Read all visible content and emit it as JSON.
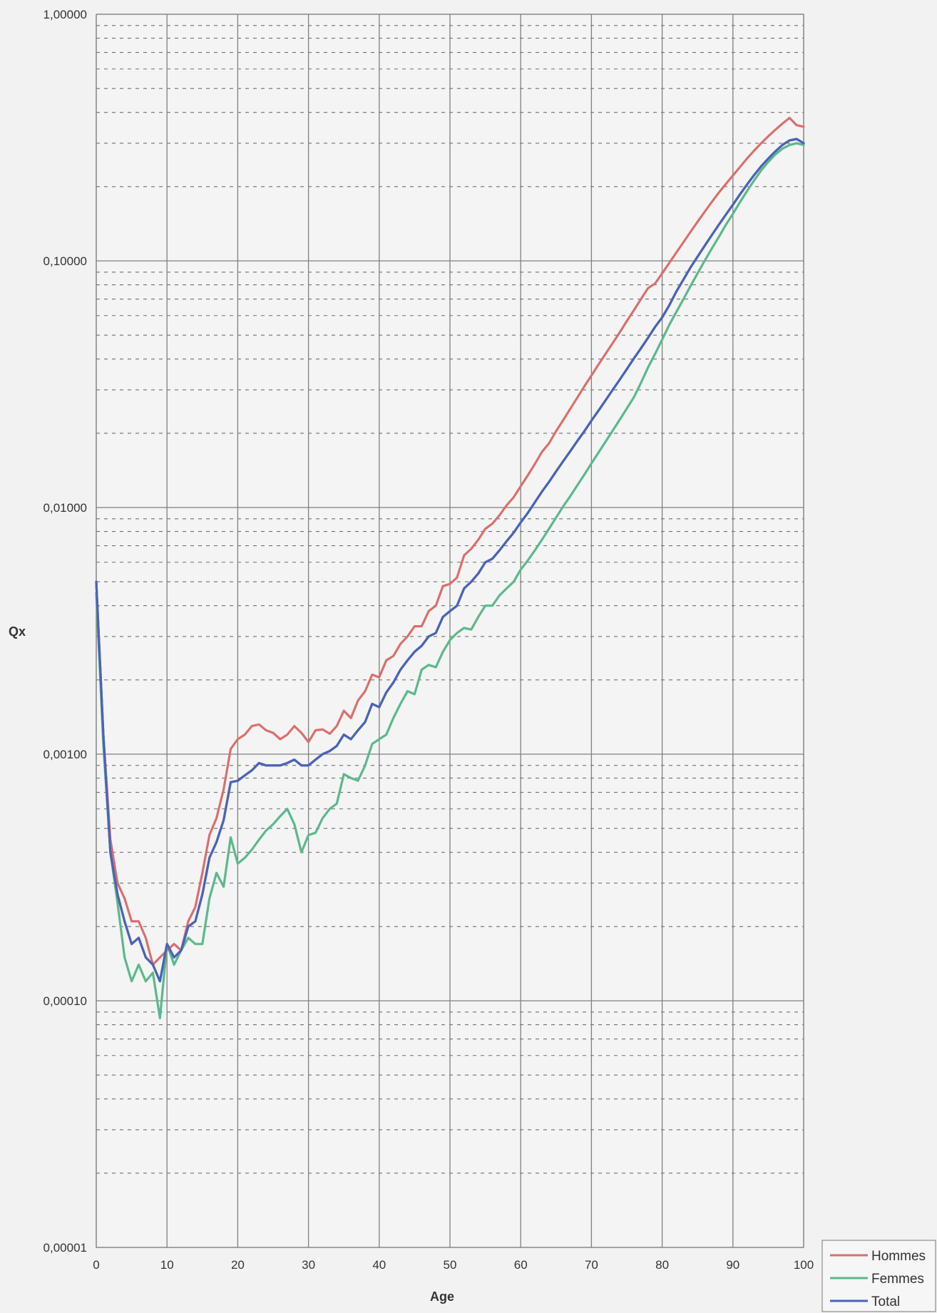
{
  "chart_data": {
    "type": "line",
    "xlabel": "Age",
    "ylabel": "Qx",
    "xlim": [
      0,
      100
    ],
    "ylim": [
      1e-05,
      1
    ],
    "y_scale": "log",
    "grid": "major solid, minor dotted",
    "legend_position": "bottom-right",
    "x_ticks": [
      0,
      10,
      20,
      30,
      40,
      50,
      60,
      70,
      80,
      90,
      100
    ],
    "x_tick_labels": [
      "0",
      "10",
      "20",
      "30",
      "40",
      "50",
      "60",
      "70",
      "80",
      "90",
      "100"
    ],
    "y_ticks": [
      1e-05,
      0.0001,
      0.001,
      0.01,
      0.1,
      1
    ],
    "y_tick_labels": [
      "0,00001",
      "0,00010",
      "0,00100",
      "0,01000",
      "0,10000",
      "1,00000"
    ],
    "x": [
      0,
      1,
      2,
      3,
      4,
      5,
      6,
      7,
      8,
      9,
      10,
      11,
      12,
      13,
      14,
      15,
      16,
      17,
      18,
      19,
      20,
      21,
      22,
      23,
      24,
      25,
      26,
      27,
      28,
      29,
      30,
      31,
      32,
      33,
      34,
      35,
      36,
      37,
      38,
      39,
      40,
      41,
      42,
      43,
      44,
      45,
      46,
      47,
      48,
      49,
      50,
      51,
      52,
      53,
      54,
      55,
      56,
      57,
      58,
      59,
      60,
      61,
      62,
      63,
      64,
      65,
      66,
      67,
      68,
      69,
      70,
      71,
      72,
      73,
      74,
      75,
      76,
      77,
      78,
      79,
      80,
      81,
      82,
      83,
      84,
      85,
      86,
      87,
      88,
      89,
      90,
      91,
      92,
      93,
      94,
      95,
      96,
      97,
      98,
      99,
      100
    ],
    "series": [
      {
        "name": "Hommes",
        "color": "#d9706e",
        "values": [
          0.005,
          0.0012,
          0.00045,
          0.0003,
          0.00026,
          0.00021,
          0.00021,
          0.00018,
          0.00014,
          0.00015,
          0.00016,
          0.00017,
          0.00016,
          0.00021,
          0.00024,
          0.00033,
          0.00047,
          0.00055,
          0.00072,
          0.00105,
          0.00115,
          0.0012,
          0.0013,
          0.00132,
          0.00125,
          0.00122,
          0.00115,
          0.0012,
          0.0013,
          0.00122,
          0.00112,
          0.00125,
          0.00126,
          0.00121,
          0.0013,
          0.0015,
          0.0014,
          0.00165,
          0.0018,
          0.0021,
          0.00205,
          0.0024,
          0.0025,
          0.0028,
          0.003,
          0.0033,
          0.0033,
          0.0038,
          0.004,
          0.0048,
          0.0049,
          0.0052,
          0.0064,
          0.0068,
          0.0074,
          0.0082,
          0.0086,
          0.0093,
          0.0102,
          0.011,
          0.0122,
          0.0135,
          0.015,
          0.0168,
          0.0182,
          0.0204,
          0.0226,
          0.0251,
          0.0279,
          0.031,
          0.0343,
          0.038,
          0.042,
          0.0464,
          0.0513,
          0.057,
          0.063,
          0.07,
          0.0775,
          0.081,
          0.089,
          0.098,
          0.108,
          0.119,
          0.131,
          0.144,
          0.158,
          0.173,
          0.189,
          0.205,
          0.222,
          0.24,
          0.26,
          0.28,
          0.3,
          0.32,
          0.34,
          0.36,
          0.38,
          0.355,
          0.35
        ]
      },
      {
        "name": "Femmes",
        "color": "#5cb88a",
        "values": [
          0.0045,
          0.0011,
          0.0004,
          0.00025,
          0.00015,
          0.00012,
          0.00014,
          0.00012,
          0.00013,
          8.5e-05,
          0.00017,
          0.00014,
          0.00016,
          0.00018,
          0.00017,
          0.00017,
          0.00026,
          0.00033,
          0.00029,
          0.00046,
          0.00036,
          0.00038,
          0.00041,
          0.00045,
          0.00049,
          0.00052,
          0.00056,
          0.0006,
          0.00052,
          0.0004,
          0.00047,
          0.00048,
          0.00055,
          0.0006,
          0.00063,
          0.00083,
          0.0008,
          0.00078,
          0.0009,
          0.0011,
          0.00115,
          0.0012,
          0.0014,
          0.0016,
          0.0018,
          0.00175,
          0.0022,
          0.0023,
          0.00225,
          0.0026,
          0.0029,
          0.0031,
          0.00325,
          0.0032,
          0.0036,
          0.004,
          0.004,
          0.0044,
          0.0047,
          0.005,
          0.0056,
          0.0061,
          0.0067,
          0.0074,
          0.0082,
          0.0091,
          0.0101,
          0.0111,
          0.0123,
          0.0136,
          0.0151,
          0.0167,
          0.0185,
          0.0205,
          0.0227,
          0.0252,
          0.028,
          0.032,
          0.037,
          0.042,
          0.048,
          0.055,
          0.062,
          0.07,
          0.079,
          0.089,
          0.1,
          0.112,
          0.125,
          0.14,
          0.155,
          0.173,
          0.192,
          0.212,
          0.233,
          0.252,
          0.27,
          0.285,
          0.295,
          0.3,
          0.295
        ]
      },
      {
        "name": "Total",
        "color": "#4a63b8",
        "values": [
          0.005,
          0.0012,
          0.0004,
          0.00027,
          0.00021,
          0.00017,
          0.00018,
          0.00015,
          0.00014,
          0.00012,
          0.00017,
          0.00015,
          0.00016,
          0.0002,
          0.00021,
          0.00027,
          0.00038,
          0.00044,
          0.00054,
          0.00077,
          0.00078,
          0.00082,
          0.00086,
          0.00092,
          0.0009,
          0.0009,
          0.0009,
          0.00092,
          0.00095,
          0.0009,
          0.0009,
          0.00095,
          0.001,
          0.00103,
          0.00108,
          0.0012,
          0.00115,
          0.00125,
          0.00135,
          0.0016,
          0.00155,
          0.00178,
          0.00195,
          0.0022,
          0.0024,
          0.0026,
          0.00275,
          0.003,
          0.0031,
          0.0036,
          0.0038,
          0.004,
          0.0047,
          0.005,
          0.0054,
          0.006,
          0.0062,
          0.0067,
          0.0073,
          0.0079,
          0.0087,
          0.0095,
          0.0105,
          0.0116,
          0.0127,
          0.014,
          0.0154,
          0.0169,
          0.0186,
          0.0204,
          0.0225,
          0.0247,
          0.0272,
          0.03,
          0.033,
          0.0364,
          0.0402,
          0.0442,
          0.0488,
          0.054,
          0.059,
          0.066,
          0.075,
          0.084,
          0.094,
          0.104,
          0.115,
          0.127,
          0.14,
          0.154,
          0.169,
          0.186,
          0.204,
          0.223,
          0.242,
          0.26,
          0.278,
          0.295,
          0.308,
          0.312,
          0.3
        ]
      },
      {
        "color": "#7c7f80",
        "values": [
          0.005,
          0.0012,
          0.0004,
          0.00027,
          0.00021,
          0.00017,
          0.00018,
          0.00015,
          0.00014,
          0.00012,
          0.00017,
          0.00015,
          0.00016,
          0.0002,
          0.00021,
          0.00027,
          0.00038,
          0.00044,
          0.00054,
          0.00077,
          0.00078,
          0.00082,
          0.00086,
          0.00092,
          0.0009,
          0.0009,
          0.0009,
          0.00092,
          0.00095,
          0.0009,
          0.0009,
          0.00095,
          0.001,
          0.00103,
          0.00108,
          0.0012,
          0.00115,
          0.00125,
          0.00135,
          0.0016,
          0.00155,
          0.00178,
          0.00195,
          0.0022,
          0.0024,
          0.0026,
          0.00275,
          0.003,
          0.0031,
          0.0036,
          0.0038,
          0.004,
          0.0047,
          0.005,
          0.0054,
          0.006,
          0.0062,
          0.0067,
          0.0073,
          0.0079,
          0.0087,
          0.0095,
          0.0105,
          0.0116,
          0.0127,
          0.014,
          0.0154,
          0.0169,
          0.0186,
          0.0204,
          0.0225,
          0.0247,
          0.0272,
          0.03,
          0.033,
          0.0364,
          0.0402,
          0.0442,
          0.0488,
          0.054,
          0.059,
          0.066,
          0.075,
          0.084,
          0.094,
          0.104,
          0.115,
          0.127,
          0.14,
          0.154,
          0.169,
          0.186,
          0.204,
          0.223,
          0.242,
          0.26,
          0.278,
          0.295,
          0.308,
          0.312,
          0.3
        ]
      }
    ]
  }
}
